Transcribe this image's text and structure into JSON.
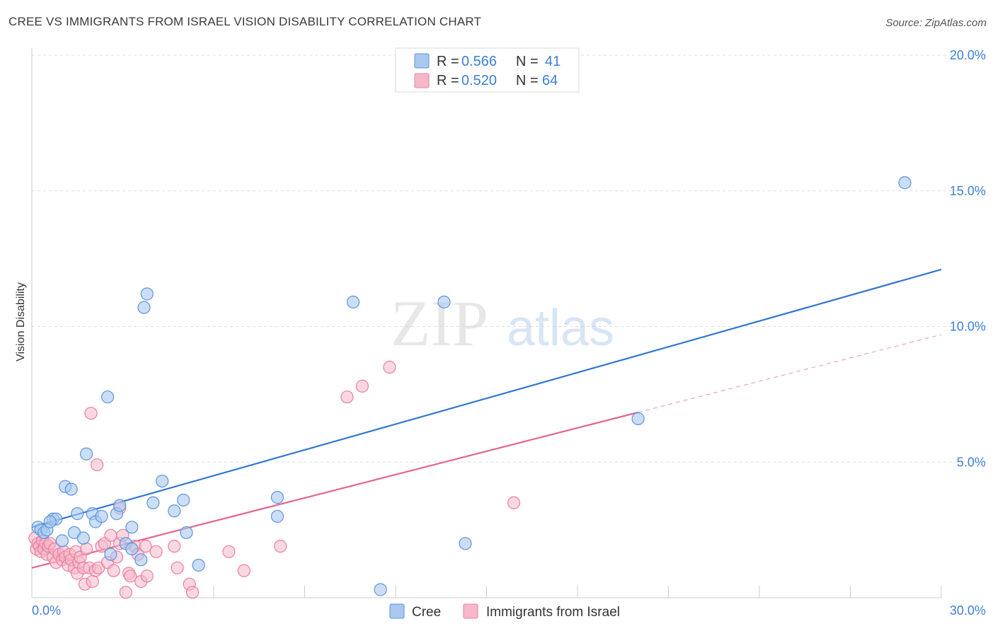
{
  "header": {
    "title": "CREE VS IMMIGRANTS FROM ISRAEL VISION DISABILITY CORRELATION CHART",
    "source": "Source: ZipAtlas.com"
  },
  "watermark": {
    "zip": "ZIP",
    "atlas": "atlas"
  },
  "colors": {
    "cree_fill": "#a9c8f0",
    "cree_stroke": "#5b95dd",
    "cree_line": "#2f76d0",
    "israel_fill": "#f6b8c9",
    "israel_stroke": "#ea7fa0",
    "israel_line": "#e4648e",
    "axis_text": "#3d7fd6",
    "grid": "#dddddd"
  },
  "legend": {
    "rows": [
      {
        "r_label": "R =",
        "r_value": "0.566",
        "n_label": "N =",
        "n_value": "41"
      },
      {
        "r_label": "R =",
        "r_value": "0.520",
        "n_label": "N =",
        "n_value": "64"
      }
    ]
  },
  "chart_data": {
    "type": "scatter",
    "title": "CREE VS IMMIGRANTS FROM ISRAEL VISION DISABILITY CORRELATION CHART",
    "xlabel": "",
    "ylabel": "Vision Disability",
    "xlim": [
      0,
      30
    ],
    "ylim": [
      0,
      20
    ],
    "x_tick_labels": [
      "0.0%",
      "30.0%"
    ],
    "y_ticks": [
      5,
      10,
      15,
      20
    ],
    "y_tick_labels": [
      "5.0%",
      "10.0%",
      "15.0%",
      "20.0%"
    ],
    "x_minor_ticks": [
      3,
      6,
      9,
      12,
      15,
      18,
      21,
      24,
      27,
      30
    ],
    "grid": true,
    "legend_position": "top-center",
    "series": [
      {
        "name": "Cree",
        "R": 0.566,
        "N": 41,
        "trend": {
          "x": [
            0,
            30
          ],
          "y": [
            2.6,
            12.1
          ],
          "solid_until": 30
        },
        "points": [
          [
            0.2,
            2.6
          ],
          [
            0.3,
            2.5
          ],
          [
            0.4,
            2.4
          ],
          [
            0.5,
            2.5
          ],
          [
            0.7,
            2.9
          ],
          [
            0.8,
            2.9
          ],
          [
            1.0,
            2.1
          ],
          [
            1.1,
            4.1
          ],
          [
            1.3,
            4.0
          ],
          [
            1.4,
            2.4
          ],
          [
            1.5,
            3.1
          ],
          [
            1.7,
            2.2
          ],
          [
            1.8,
            5.3
          ],
          [
            2.0,
            3.1
          ],
          [
            2.1,
            2.8
          ],
          [
            2.3,
            3.0
          ],
          [
            2.5,
            7.4
          ],
          [
            2.6,
            1.6
          ],
          [
            2.8,
            3.1
          ],
          [
            2.9,
            3.4
          ],
          [
            3.1,
            2.0
          ],
          [
            3.3,
            2.6
          ],
          [
            3.3,
            1.8
          ],
          [
            3.6,
            1.4
          ],
          [
            3.7,
            10.7
          ],
          [
            3.8,
            11.2
          ],
          [
            4.0,
            3.5
          ],
          [
            4.3,
            4.3
          ],
          [
            4.7,
            3.2
          ],
          [
            5.0,
            3.6
          ],
          [
            5.1,
            2.4
          ],
          [
            5.5,
            1.2
          ],
          [
            8.1,
            3.7
          ],
          [
            8.1,
            3.0
          ],
          [
            10.6,
            10.9
          ],
          [
            11.5,
            0.3
          ],
          [
            13.6,
            10.9
          ],
          [
            14.3,
            2.0
          ],
          [
            20.0,
            6.6
          ],
          [
            28.8,
            15.3
          ],
          [
            0.6,
            2.8
          ]
        ]
      },
      {
        "name": "Immigrants from Israel",
        "R": 0.52,
        "N": 64,
        "trend": {
          "x": [
            0,
            30
          ],
          "y": [
            1.1,
            9.7
          ],
          "solid_until": 20.0
        },
        "points": [
          [
            0.1,
            2.2
          ],
          [
            0.15,
            1.8
          ],
          [
            0.2,
            2.0
          ],
          [
            0.25,
            1.9
          ],
          [
            0.3,
            1.7
          ],
          [
            0.35,
            2.1
          ],
          [
            0.4,
            1.8
          ],
          [
            0.45,
            2.0
          ],
          [
            0.5,
            1.6
          ],
          [
            0.55,
            1.9
          ],
          [
            0.6,
            2.0
          ],
          [
            0.7,
            1.5
          ],
          [
            0.75,
            1.8
          ],
          [
            0.8,
            1.3
          ],
          [
            0.9,
            1.6
          ],
          [
            1.0,
            1.4
          ],
          [
            1.05,
            1.7
          ],
          [
            1.1,
            1.5
          ],
          [
            1.2,
            1.2
          ],
          [
            1.25,
            1.6
          ],
          [
            1.3,
            1.4
          ],
          [
            1.4,
            1.1
          ],
          [
            1.45,
            1.7
          ],
          [
            1.5,
            0.9
          ],
          [
            1.55,
            1.3
          ],
          [
            1.6,
            1.5
          ],
          [
            1.7,
            1.1
          ],
          [
            1.75,
            0.5
          ],
          [
            1.8,
            1.8
          ],
          [
            1.9,
            1.1
          ],
          [
            1.95,
            6.8
          ],
          [
            2.0,
            0.6
          ],
          [
            2.1,
            1.0
          ],
          [
            2.15,
            4.9
          ],
          [
            2.2,
            1.1
          ],
          [
            2.3,
            1.9
          ],
          [
            2.4,
            2.0
          ],
          [
            2.5,
            1.3
          ],
          [
            2.6,
            2.3
          ],
          [
            2.7,
            1.0
          ],
          [
            2.8,
            1.5
          ],
          [
            2.9,
            2.0
          ],
          [
            3.0,
            2.3
          ],
          [
            3.1,
            0.2
          ],
          [
            3.2,
            0.9
          ],
          [
            3.25,
            0.8
          ],
          [
            3.4,
            1.9
          ],
          [
            3.5,
            1.6
          ],
          [
            3.6,
            0.6
          ],
          [
            3.75,
            1.9
          ],
          [
            3.8,
            0.8
          ],
          [
            4.1,
            1.7
          ],
          [
            4.7,
            1.9
          ],
          [
            4.8,
            1.1
          ],
          [
            5.2,
            0.5
          ],
          [
            5.3,
            0.2
          ],
          [
            6.5,
            1.7
          ],
          [
            7.0,
            1.0
          ],
          [
            8.2,
            1.9
          ],
          [
            10.4,
            7.4
          ],
          [
            10.9,
            7.8
          ],
          [
            11.8,
            8.5
          ],
          [
            15.9,
            3.5
          ],
          [
            2.9,
            3.3
          ]
        ]
      }
    ]
  },
  "bottom_legend": {
    "items": [
      {
        "label": "Cree"
      },
      {
        "label": "Immigrants from Israel"
      }
    ]
  }
}
